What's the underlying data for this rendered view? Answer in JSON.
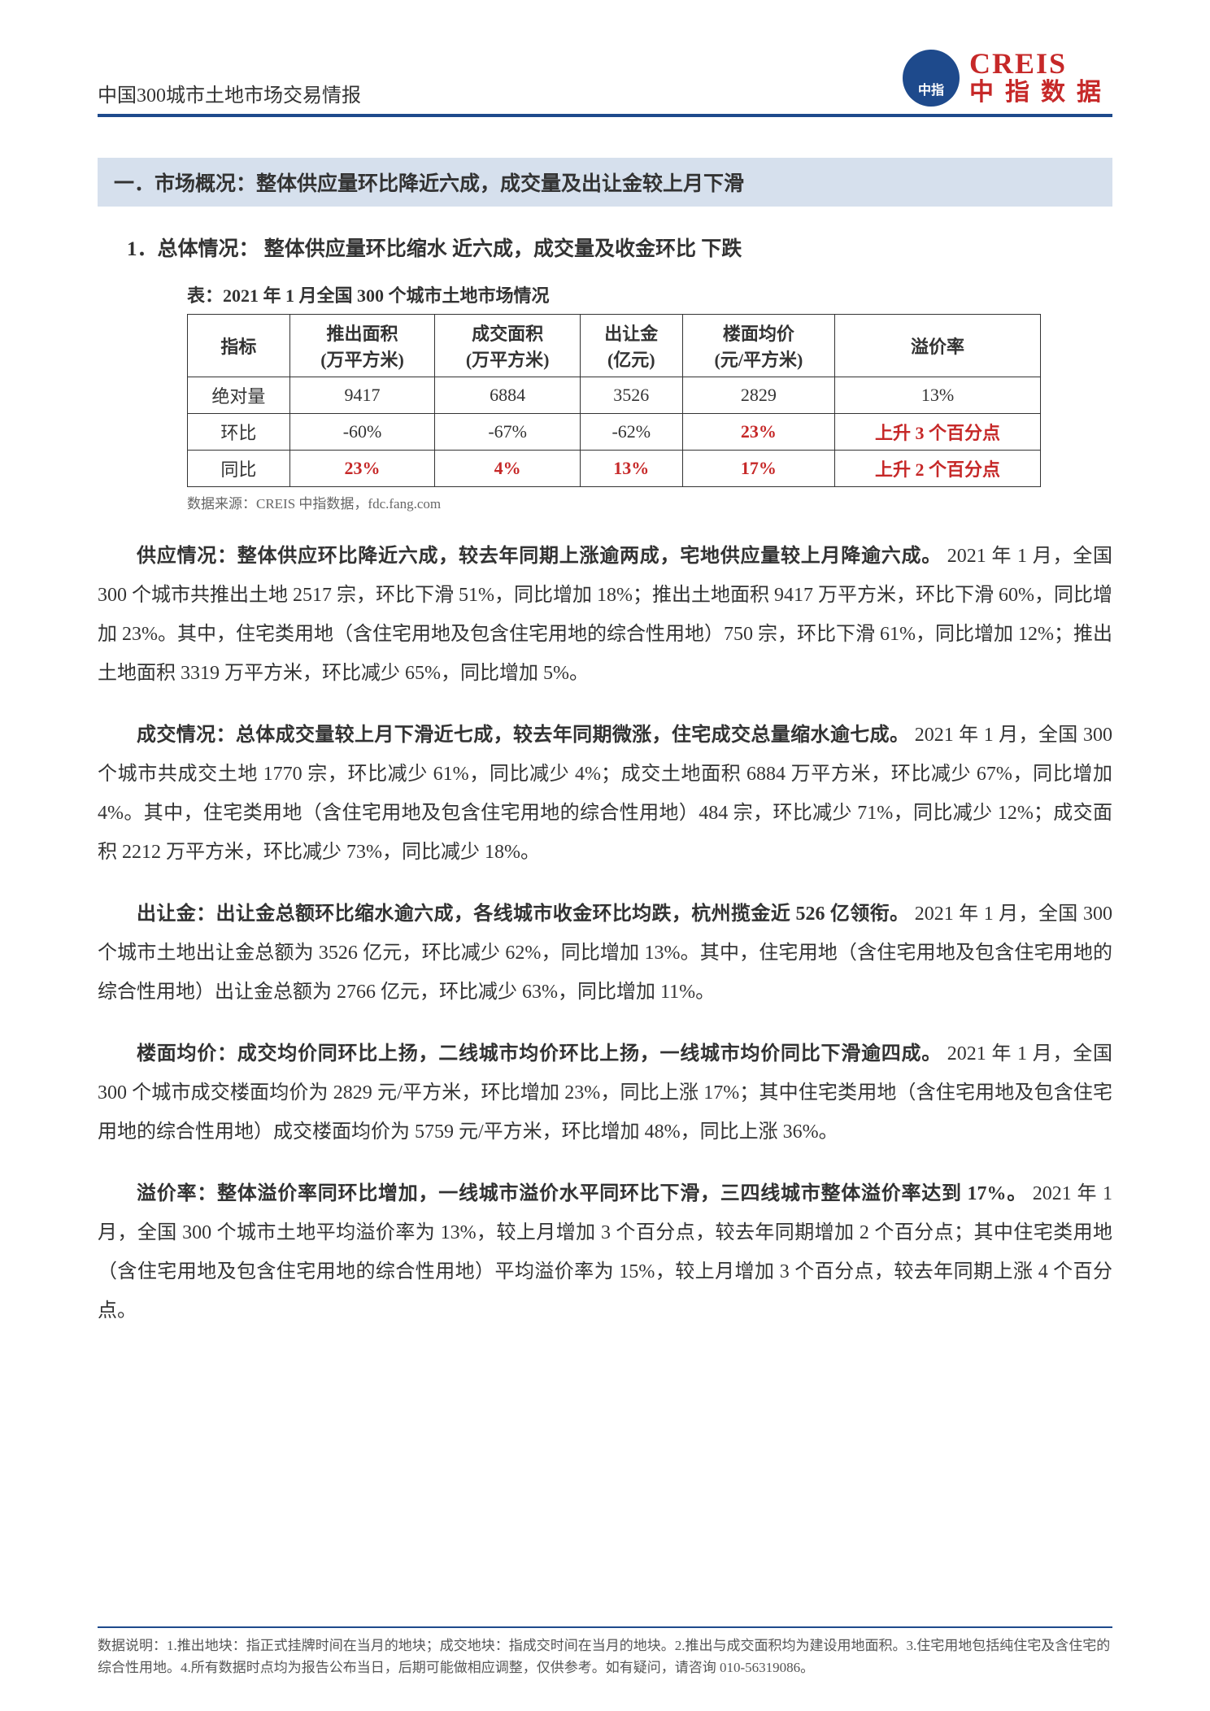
{
  "header": {
    "title": "中国300城市土地市场交易情报",
    "logo_creis": "CREIS",
    "logo_cn": "中指数据"
  },
  "section": {
    "banner": "一．市场概况：整体供应量环比降近六成，成交量及出让金较上月下滑",
    "subtitle": "1．总体情况： 整体供应量环比缩水 近六成，成交量及收金环比  下跌",
    "table_caption": "表：2021 年 1 月全国 300 个城市土地市场情况"
  },
  "table": {
    "headers": [
      "指标",
      "推出面积\n(万平方米)",
      "成交面积\n(万平方米)",
      "出让金\n(亿元)",
      "楼面均价\n(元/平方米)",
      "溢价率"
    ],
    "h0": "指标",
    "h1a": "推出面积",
    "h1b": "(万平方米)",
    "h2a": "成交面积",
    "h2b": "(万平方米)",
    "h3a": "出让金",
    "h3b": "(亿元)",
    "h4a": "楼面均价",
    "h4b": "(元/平方米)",
    "h5": "溢价率",
    "rows": [
      {
        "label": "绝对量",
        "c1": "9417",
        "c2": "6884",
        "c3": "3526",
        "c4": "2829",
        "c5": "13%",
        "red": [
          false,
          false,
          false,
          false,
          false
        ]
      },
      {
        "label": "环比",
        "c1": "-60%",
        "c2": "-67%",
        "c3": "-62%",
        "c4": "23%",
        "c5": "上升 3 个百分点",
        "red": [
          false,
          false,
          false,
          true,
          true
        ]
      },
      {
        "label": "同比",
        "c1": "23%",
        "c2": "4%",
        "c3": "13%",
        "c4": "17%",
        "c5": "上升 2 个百分点",
        "red": [
          true,
          true,
          true,
          true,
          true
        ]
      }
    ],
    "source": "数据来源：CREIS 中指数据，fdc.fang.com"
  },
  "paragraphs": {
    "p1_lead": "供应情况：整体供应环比降近六成，较去年同期上涨逾两成，宅地供应量较上月降逾六成。",
    "p1_body": "2021 年 1 月，全国 300 个城市共推出土地 2517 宗，环比下滑 51%，同比增加 18%；推出土地面积 9417 万平方米，环比下滑 60%，同比增加 23%。其中，住宅类用地（含住宅用地及包含住宅用地的综合性用地）750 宗，环比下滑 61%，同比增加 12%；推出土地面积 3319 万平方米，环比减少 65%，同比增加 5%。",
    "p2_lead": "成交情况：总体成交量较上月下滑近七成，较去年同期微涨，住宅成交总量缩水逾七成。",
    "p2_body": "2021 年 1 月，全国 300 个城市共成交土地 1770 宗，环比减少 61%，同比减少 4%；成交土地面积 6884 万平方米，环比减少 67%，同比增加 4%。其中，住宅类用地（含住宅用地及包含住宅用地的综合性用地）484 宗，环比减少 71%，同比减少 12%；成交面积 2212 万平方米，环比减少 73%，同比减少 18%。",
    "p3_lead": "出让金：出让金总额环比缩水逾六成，各线城市收金环比均跌，杭州揽金近 526 亿领衔。",
    "p3_body": "2021 年 1 月，全国 300 个城市土地出让金总额为 3526 亿元，环比减少 62%，同比增加 13%。其中，住宅用地（含住宅用地及包含住宅用地的综合性用地）出让金总额为 2766 亿元，环比减少 63%，同比增加 11%。",
    "p4_lead": "楼面均价：成交均价同环比上扬，二线城市均价环比上扬，一线城市均价同比下滑逾四成。",
    "p4_body": "2021 年 1 月，全国 300 个城市成交楼面均价为 2829 元/平方米，环比增加 23%，同比上涨 17%；其中住宅类用地（含住宅用地及包含住宅用地的综合性用地）成交楼面均价为 5759 元/平方米，环比增加 48%，同比上涨 36%。",
    "p5_lead": "溢价率：整体溢价率同环比增加，一线城市溢价水平同环比下滑，三四线城市整体溢价率达到 17%。",
    "p5_body": "2021 年 1 月，全国 300 个城市土地平均溢价率为 13%，较上月增加 3 个百分点，较去年同期增加 2 个百分点；其中住宅类用地（含住宅用地及包含住宅用地的综合性用地）平均溢价率为 15%，较上月增加 3 个百分点，较去年同期上涨 4 个百分点。"
  },
  "footer": {
    "text": "数据说明：1.推出地块：指正式挂牌时间在当月的地块；成交地块：指成交时间在当月的地块。2.推出与成交面积均为建设用地面积。3.住宅用地包括纯住宅及含住宅的综合性用地。4.所有数据时点均为报告公布当日，后期可能做相应调整，仅供参考。如有疑问，请咨询 010-56319086。"
  },
  "colors": {
    "accent_blue": "#1e4a8c",
    "accent_red": "#c62828",
    "banner_bg": "#d6e0ed",
    "text": "#333333",
    "muted": "#666666"
  }
}
